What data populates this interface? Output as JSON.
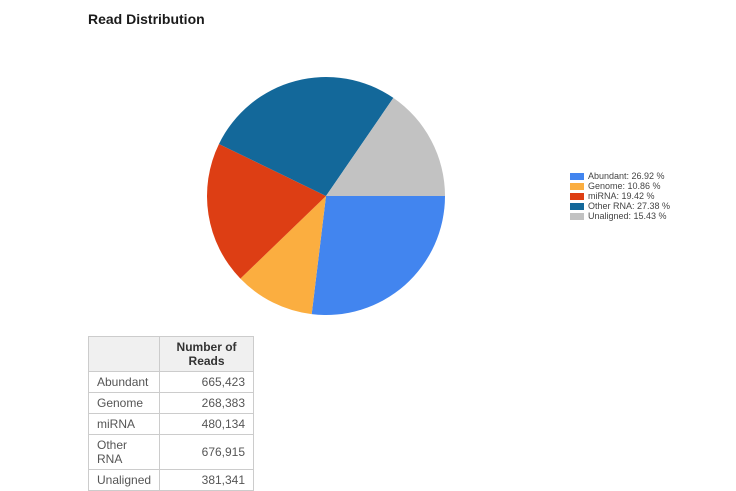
{
  "page": {
    "title": "Read Distribution"
  },
  "chart_data": {
    "type": "pie",
    "title": "Read Distribution",
    "categories": [
      "Abundant",
      "Genome",
      "miRNA",
      "Other RNA",
      "Unaligned"
    ],
    "values": [
      665423,
      268383,
      480134,
      676915,
      381341
    ],
    "percentages": [
      26.92,
      10.86,
      19.42,
      27.38,
      15.43
    ],
    "colors": [
      "#4285EF",
      "#FBAE40",
      "#DD3E14",
      "#13689A",
      "#C2C2C2"
    ],
    "start_angle_deg": 0,
    "direction": "clockwise",
    "legend_position": "right",
    "legend_labels": [
      "Abundant: 26.92 %",
      "Genome: 10.86 %",
      "miRNA: 19.42 %",
      "Other RNA: 27.38 %",
      "Unaligned: 15.43 %"
    ]
  },
  "table": {
    "header": [
      "",
      "Number of Reads"
    ],
    "rows": [
      {
        "label": "Abundant",
        "value": "665,423"
      },
      {
        "label": "Genome",
        "value": "268,383"
      },
      {
        "label": "miRNA",
        "value": "480,134"
      },
      {
        "label": "Other RNA",
        "value": "676,915"
      },
      {
        "label": "Unaligned",
        "value": "381,341"
      }
    ]
  }
}
